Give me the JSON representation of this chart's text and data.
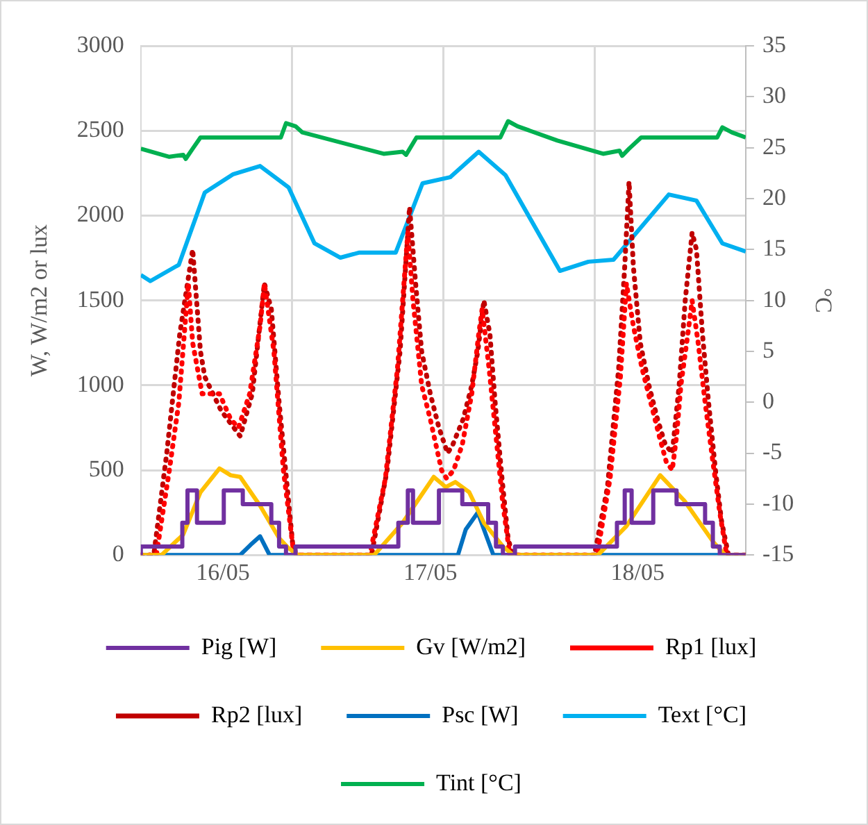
{
  "chart_data": {
    "type": "line",
    "ylabel": "W, W/m2 or lux",
    "y2label": "°C",
    "xlim": [
      "--05-16T02:30",
      "--05-19T00:30"
    ],
    "xticks": [
      {
        "value": "--05-16T12:00",
        "label": "16/05"
      },
      {
        "value": "--05-16T20:00",
        "label": null
      },
      {
        "value": "--05-17T12:00",
        "label": "17/05"
      },
      {
        "value": "--05-17T13:30",
        "label": null
      },
      {
        "value": "--05-18T07:00",
        "label": null
      },
      {
        "value": "--05-18T12:00",
        "label": "18/05"
      }
    ],
    "ylim": [
      0,
      3000
    ],
    "yticks": [
      0,
      500,
      1000,
      1500,
      2000,
      2500,
      3000
    ],
    "y2lim": [
      -15,
      35
    ],
    "y2ticks": [
      -15,
      -10,
      -5,
      0,
      5,
      10,
      15,
      20,
      25,
      30,
      35
    ],
    "grid": true,
    "legend": "bottom",
    "marker": "none",
    "series": [
      {
        "name": "Pig [W]",
        "type": "step",
        "color": "#7030a0",
        "x": [
          "--05-16T02:30",
          "--05-16T07:18",
          "--05-16T07:54",
          "--05-16T09:00",
          "--05-16T12:06",
          "--05-16T14:18",
          "--05-16T17:36",
          "--05-16T18:30",
          "--05-16T19:18",
          "--05-16T20:24",
          "--05-17T08:18",
          "--05-17T09:24",
          "--05-17T10:00",
          "--05-17T13:00",
          "--05-17T15:42",
          "--05-17T18:42",
          "--05-17T19:36",
          "--05-17T20:24",
          "--05-17T21:48",
          "--05-18T09:36",
          "--05-18T10:30",
          "--05-18T11:18",
          "--05-18T13:48",
          "--05-18T16:30",
          "--05-18T19:48",
          "--05-18T20:42",
          "--05-18T21:30",
          "--05-18T22:54",
          "--05-19T00:30"
        ],
        "values": [
          0,
          50,
          190,
          380,
          190,
          380,
          300,
          190,
          50,
          0,
          50,
          190,
          380,
          190,
          380,
          300,
          190,
          50,
          0,
          50,
          190,
          380,
          190,
          380,
          300,
          190,
          50,
          0,
          0
        ]
      },
      {
        "name": "Gv [W/m2]",
        "color": "#ffc000",
        "x": [
          "--05-16T02:30",
          "--05-16T04:54",
          "--05-16T07:24",
          "--05-16T09:24",
          "--05-16T11:36",
          "--05-16T12:54",
          "--05-16T14:00",
          "--05-16T16:18",
          "--05-16T18:30",
          "--05-16T19:36",
          "--05-16T20:42",
          "--05-17T05:30",
          "--05-17T08:48",
          "--05-17T12:24",
          "--05-17T13:48",
          "--05-17T14:54",
          "--05-17T16:30",
          "--05-17T18:12",
          "--05-17T20:24",
          "--05-17T21:36",
          "--05-18T07:24",
          "--05-18T10:42",
          "--05-18T14:36",
          "--05-18T17:24",
          "--05-18T20:42",
          "--05-18T22:06",
          "--05-19T00:30"
        ],
        "values": [
          0,
          0,
          120,
          370,
          510,
          470,
          460,
          290,
          100,
          40,
          0,
          0,
          190,
          460,
          400,
          430,
          370,
          190,
          50,
          0,
          0,
          170,
          470,
          320,
          80,
          0,
          0
        ]
      },
      {
        "name": "Rp1 [lux]",
        "color": "#ff0000",
        "line_style": "dotted",
        "x": [
          "--05-16T02:30",
          "--05-16T04:18",
          "--05-16T05:48",
          "--05-16T06:54",
          "--05-16T08:00",
          "--05-16T08:30",
          "--05-16T09:36",
          "--05-16T11:36",
          "--05-16T12:54",
          "--05-16T13:48",
          "--05-16T15:06",
          "--05-16T16:18",
          "--05-16T16:48",
          "--05-16T17:54",
          "--05-16T19:00",
          "--05-16T20:06",
          "--05-16T20:30",
          "--05-17T05:00",
          "--05-17T06:48",
          "--05-17T08:12",
          "--05-17T09:24",
          "--05-17T10:00",
          "--05-17T11:00",
          "--05-17T12:00",
          "--05-17T13:18",
          "--05-17T13:54",
          "--05-17T14:42",
          "--05-17T15:42",
          "--05-17T16:48",
          "--05-17T17:36",
          "--05-17T18:00",
          "--05-17T18:48",
          "--05-17T19:36",
          "--05-17T20:24",
          "--05-17T21:12",
          "--05-18T07:18",
          "--05-18T08:48",
          "--05-18T10:00",
          "--05-18T10:42",
          "--05-18T11:30",
          "--05-18T12:30",
          "--05-18T13:30",
          "--05-18T14:30",
          "--05-18T15:18",
          "--05-18T16:00",
          "--05-18T16:30",
          "--05-18T17:00",
          "--05-18T17:48",
          "--05-18T18:18",
          "--05-18T19:00",
          "--05-18T19:48",
          "--05-18T20:42",
          "--05-18T21:30",
          "--05-18T22:18",
          "--05-19T00:30"
        ],
        "values": [
          0,
          0,
          500,
          900,
          1600,
          1250,
          950,
          950,
          800,
          750,
          950,
          1350,
          1600,
          1200,
          500,
          50,
          0,
          0,
          450,
          1100,
          1900,
          1500,
          1000,
          800,
          500,
          450,
          500,
          650,
          950,
          1300,
          1450,
          1100,
          700,
          300,
          0,
          0,
          450,
          1050,
          1600,
          1350,
          1100,
          900,
          700,
          550,
          500,
          700,
          1000,
          1300,
          1500,
          1250,
          900,
          550,
          250,
          0,
          0
        ]
      },
      {
        "name": "Rp2 [lux]",
        "color": "#c00000",
        "line_style": "dotted",
        "x": [
          "--05-16T02:30",
          "--05-16T04:00",
          "--05-16T05:30",
          "--05-16T07:00",
          "--05-16T08:30",
          "--05-16T09:24",
          "--05-16T09:54",
          "--05-16T11:48",
          "--05-16T14:00",
          "--05-16T15:24",
          "--05-16T16:48",
          "--05-16T17:36",
          "--05-16T18:30",
          "--05-16T20:06",
          "--05-16T20:36",
          "--05-17T05:12",
          "--05-17T07:00",
          "--05-17T08:30",
          "--05-17T09:36",
          "--05-17T10:18",
          "--05-17T11:00",
          "--05-17T12:00",
          "--05-17T13:00",
          "--05-17T14:00",
          "--05-17T14:36",
          "--05-17T15:48",
          "--05-17T16:48",
          "--05-17T17:30",
          "--05-17T18:12",
          "--05-17T18:54",
          "--05-17T19:30",
          "--05-17T20:18",
          "--05-17T21:00",
          "--05-17T21:30",
          "--05-18T07:00",
          "--05-18T08:30",
          "--05-18T09:48",
          "--05-18T10:30",
          "--05-18T11:00",
          "--05-18T11:30",
          "--05-18T12:18",
          "--05-18T13:18",
          "--05-18T14:18",
          "--05-18T15:12",
          "--05-18T16:00",
          "--05-18T16:48",
          "--05-18T17:30",
          "--05-18T18:18",
          "--05-18T18:48",
          "--05-18T19:30",
          "--05-18T20:12",
          "--05-18T21:00",
          "--05-18T21:42",
          "--05-18T22:30",
          "--05-19T00:30"
        ],
        "values": [
          0,
          0,
          600,
          1300,
          1800,
          1200,
          1050,
          850,
          700,
          950,
          1600,
          1450,
          900,
          50,
          0,
          0,
          500,
          1200,
          2050,
          1600,
          1200,
          950,
          750,
          600,
          650,
          800,
          1000,
          1200,
          1500,
          1300,
          900,
          450,
          100,
          0,
          0,
          400,
          1100,
          1700,
          2200,
          1700,
          1250,
          1000,
          800,
          650,
          600,
          1000,
          1500,
          1900,
          1800,
          1300,
          900,
          500,
          200,
          0,
          0
        ]
      },
      {
        "name": "Psc [W]",
        "color": "#0070c0",
        "x": [
          "--05-16T02:30",
          "--05-16T14:00",
          "--05-16T15:12",
          "--05-16T16:18",
          "--05-16T17:24",
          "--05-17T15:12",
          "--05-17T16:06",
          "--05-17T17:30",
          "--05-17T18:30",
          "--05-17T19:18",
          "--05-19T00:30"
        ],
        "values": [
          0,
          0,
          60,
          110,
          0,
          0,
          150,
          250,
          110,
          0,
          0
        ]
      },
      {
        "name": "Text [°C]",
        "color": "#00b0f0",
        "axis": "y2",
        "x": [
          "--05-16T02:30",
          "--05-16T03:36",
          "--05-16T06:54",
          "--05-16T09:54",
          "--05-16T13:12",
          "--05-16T16:18",
          "--05-16T19:36",
          "--05-16T22:36",
          "--05-17T01:36",
          "--05-17T03:48",
          "--05-17T08:00",
          "--05-17T11:06",
          "--05-17T14:18",
          "--05-17T17:36",
          "--05-17T20:42",
          "--05-18T03:00",
          "--05-18T06:18",
          "--05-18T09:12",
          "--05-18T15:36",
          "--05-18T18:48",
          "--05-18T21:48",
          "--05-19T00:30"
        ],
        "values": [
          12.5,
          11.9,
          13.5,
          20.6,
          22.4,
          23.2,
          21.1,
          15.6,
          14.2,
          14.7,
          14.7,
          21.5,
          22.1,
          24.6,
          22.3,
          12.9,
          13.8,
          14.0,
          20.4,
          19.8,
          15.6,
          14.8
        ]
      },
      {
        "name": "Tint [°C]",
        "color": "#00b050",
        "axis": "y2",
        "x": [
          "--05-16T02:30",
          "--05-16T05:48",
          "--05-16T07:24",
          "--05-16T07:42",
          "--05-16T08:30",
          "--05-16T09:24",
          "--05-16T18:42",
          "--05-16T19:18",
          "--05-16T20:24",
          "--05-16T21:12",
          "--05-17T06:36",
          "--05-17T08:48",
          "--05-17T09:12",
          "--05-17T10:24",
          "--05-17T20:06",
          "--05-17T21:00",
          "--05-17T22:06",
          "--05-18T02:42",
          "--05-18T08:00",
          "--05-18T09:54",
          "--05-18T10:12",
          "--05-18T11:00",
          "--05-18T12:24",
          "--05-18T21:12",
          "--05-18T21:48",
          "--05-18T22:54",
          "--05-19T00:30"
        ],
        "values": [
          24.9,
          24.1,
          24.3,
          23.9,
          24.9,
          26.0,
          26.0,
          27.4,
          27.1,
          26.5,
          24.4,
          24.6,
          24.3,
          26.0,
          26.0,
          27.6,
          27.1,
          25.7,
          24.4,
          24.7,
          24.2,
          24.9,
          26.0,
          26.0,
          27.0,
          26.5,
          26.0
        ]
      }
    ]
  }
}
